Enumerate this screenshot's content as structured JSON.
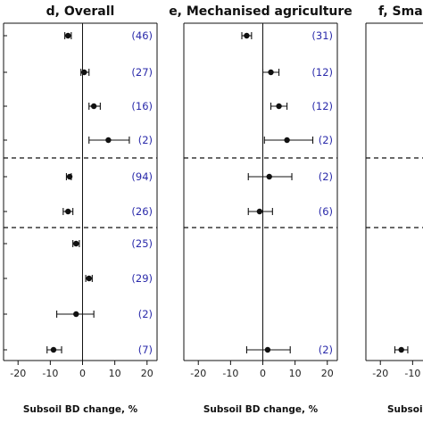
{
  "chart_data": [
    {
      "type": "scatter",
      "subtype": "forest-plot",
      "title": "d, Overall",
      "xlabel": "Subsoil BD change, %",
      "xlim": [
        -22,
        22
      ],
      "xticks": [
        -20,
        -10,
        0,
        10,
        20
      ],
      "reference_line": 0,
      "group_separators": "dashed, after row 4 and after row 6",
      "count_color": "#2a2aaa",
      "rows": [
        {
          "mean": -4.5,
          "low": -5.5,
          "high": -3.5,
          "n": "(46)"
        },
        {
          "mean": 0.5,
          "low": -0.5,
          "high": 2.0,
          "n": "(27)"
        },
        {
          "mean": 3.5,
          "low": 2.0,
          "high": 5.5,
          "n": "(16)"
        },
        {
          "mean": 8.0,
          "low": 2.0,
          "high": 14.5,
          "n": "(2)"
        },
        {
          "mean": -4.0,
          "low": -5.0,
          "high": -3.5,
          "n": "(94)"
        },
        {
          "mean": -4.5,
          "low": -6.0,
          "high": -3.0,
          "n": "(26)"
        },
        {
          "mean": -2.0,
          "low": -3.0,
          "high": -1.0,
          "n": "(25)"
        },
        {
          "mean": 2.0,
          "low": 1.0,
          "high": 3.0,
          "n": "(29)"
        },
        {
          "mean": -2.0,
          "low": -8.0,
          "high": 3.5,
          "n": "(2)"
        },
        {
          "mean": -9.0,
          "low": -11.0,
          "high": -6.5,
          "n": "(7)"
        }
      ]
    },
    {
      "type": "scatter",
      "subtype": "forest-plot",
      "title": "e, Mechanised agriculture",
      "xlabel": "Subsoil BD change, %",
      "xlim": [
        -22,
        22
      ],
      "xticks": [
        -20,
        -10,
        0,
        10,
        20
      ],
      "reference_line": 0,
      "group_separators": "dashed, after row 4 and after row 6",
      "count_color": "#2a2aaa",
      "rows": [
        {
          "mean": -5.0,
          "low": -6.5,
          "high": -3.5,
          "n": "(31)"
        },
        {
          "mean": 2.5,
          "low": 0.0,
          "high": 5.0,
          "n": "(12)"
        },
        {
          "mean": 5.0,
          "low": 2.5,
          "high": 7.5,
          "n": "(12)"
        },
        {
          "mean": 7.5,
          "low": 0.5,
          "high": 15.5,
          "n": "(2)"
        },
        {
          "mean": 2.0,
          "low": -4.5,
          "high": 9.0,
          "n": "(2)"
        },
        {
          "mean": -1.0,
          "low": -4.5,
          "high": 3.0,
          "n": "(6)"
        },
        null,
        null,
        null,
        {
          "mean": 1.5,
          "low": -5.0,
          "high": 8.5,
          "n": "(2)"
        }
      ]
    },
    {
      "type": "scatter",
      "subtype": "forest-plot",
      "title": "f, Small",
      "xlabel": "Subsoil BD",
      "xlim": [
        -22,
        22
      ],
      "xticks": [
        -20,
        -10
      ],
      "reference_line": 0,
      "group_separators": "dashed, after row 4 and after row 6",
      "rows": [
        null,
        null,
        null,
        null,
        null,
        null,
        null,
        null,
        null,
        {
          "mean": -13.5,
          "low": -15.5,
          "high": -11.5,
          "n": ""
        }
      ]
    }
  ]
}
